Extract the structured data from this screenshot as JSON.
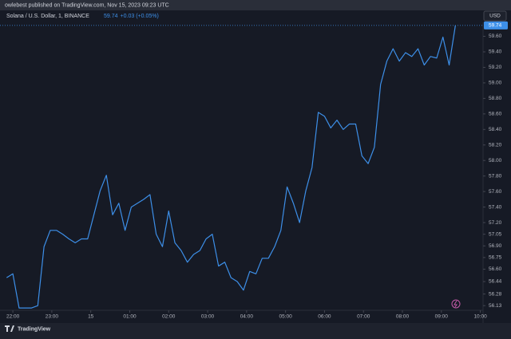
{
  "publish_note": "owlebest published on TradingView.com, Nov 15, 2023 09:23 UTC",
  "currency_button": "USD",
  "brand": "TradingView",
  "chart_data": {
    "type": "line",
    "title": "Solana / U.S. Dollar, 1, BINANCE",
    "last_price": 59.74,
    "change": "+0.03 (+0.05%)",
    "color": "#3d8fe8",
    "grid": false,
    "x": [
      -0.16,
      0,
      0.16,
      0.32,
      0.48,
      0.64,
      0.8,
      0.96,
      1.12,
      1.28,
      1.44,
      1.6,
      1.76,
      1.92,
      2.08,
      2.24,
      2.4,
      2.56,
      2.72,
      2.88,
      3.04,
      3.2,
      3.36,
      3.52,
      3.68,
      3.84,
      4,
      4.16,
      4.32,
      4.48,
      4.64,
      4.8,
      4.96,
      5.12,
      5.28,
      5.44,
      5.6,
      5.76,
      5.92,
      6.08,
      6.24,
      6.4,
      6.56,
      6.72,
      6.88,
      7.04,
      7.2,
      7.36,
      7.52,
      7.68,
      7.84,
      8,
      8.16,
      8.32,
      8.48,
      8.64,
      8.8,
      8.96,
      9.12,
      9.28,
      9.44,
      9.6,
      9.76,
      9.92,
      10.08,
      10.24,
      10.4,
      10.56,
      10.72,
      10.88,
      11.04,
      11.2,
      11.36
    ],
    "values": [
      56.49,
      56.54,
      56.1,
      56.1,
      56.1,
      56.13,
      56.89,
      57.1,
      57.1,
      57.05,
      56.99,
      56.94,
      56.99,
      56.99,
      57.3,
      57.61,
      57.81,
      57.3,
      57.45,
      57.1,
      57.4,
      57.45,
      57.5,
      57.56,
      57.05,
      56.89,
      57.35,
      56.94,
      56.84,
      56.69,
      56.79,
      56.84,
      56.99,
      57.05,
      56.64,
      56.69,
      56.49,
      56.44,
      56.33,
      56.57,
      56.54,
      56.74,
      56.74,
      56.89,
      57.1,
      57.66,
      57.45,
      57.2,
      57.61,
      57.91,
      58.62,
      58.57,
      58.42,
      58.52,
      58.4,
      58.47,
      58.47,
      58.06,
      57.96,
      58.17,
      58.98,
      59.28,
      59.44,
      59.28,
      59.39,
      59.34,
      59.44,
      59.23,
      59.34,
      59.32,
      59.59,
      59.23,
      59.74
    ],
    "xlim": [
      -0.33,
      12.07
    ],
    "ylim": [
      56.06,
      59.78
    ],
    "xticks": [
      {
        "value": 0,
        "label": "22:00"
      },
      {
        "value": 1,
        "label": "23:00"
      },
      {
        "value": 2,
        "label": "15"
      },
      {
        "value": 3,
        "label": "01:00"
      },
      {
        "value": 4,
        "label": "02:00"
      },
      {
        "value": 5,
        "label": "03:00"
      },
      {
        "value": 6,
        "label": "04:00"
      },
      {
        "value": 7,
        "label": "05:00"
      },
      {
        "value": 8,
        "label": "06:00"
      },
      {
        "value": 9,
        "label": "07:00"
      },
      {
        "value": 10,
        "label": "08:00"
      },
      {
        "value": 11,
        "label": "09:00"
      },
      {
        "value": 12,
        "label": "10:00"
      }
    ],
    "yticks": [
      {
        "value": 59.6,
        "label": "59.60"
      },
      {
        "value": 59.4,
        "label": "59.40"
      },
      {
        "value": 59.2,
        "label": "59.20"
      },
      {
        "value": 59.0,
        "label": "59.00"
      },
      {
        "value": 58.8,
        "label": "58.80"
      },
      {
        "value": 58.6,
        "label": "58.60"
      },
      {
        "value": 58.4,
        "label": "58.40"
      },
      {
        "value": 58.2,
        "label": "58.20"
      },
      {
        "value": 58.0,
        "label": "58.00"
      },
      {
        "value": 57.8,
        "label": "57.80"
      },
      {
        "value": 57.6,
        "label": "57.60"
      },
      {
        "value": 57.4,
        "label": "57.40"
      },
      {
        "value": 57.2,
        "label": "57.20"
      },
      57.05,
      {
        "value": 56.9,
        "label": "56.90"
      },
      56.75,
      {
        "value": 56.6,
        "label": "56.60"
      },
      56.44,
      56.28,
      56.13
    ]
  }
}
